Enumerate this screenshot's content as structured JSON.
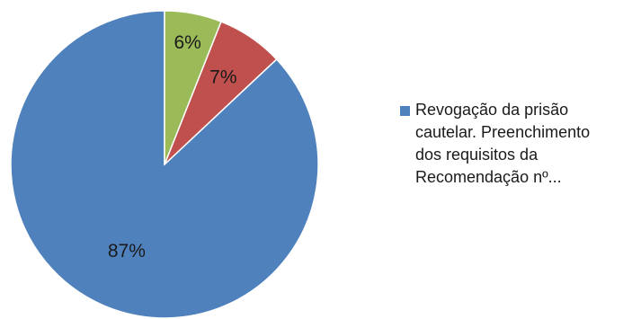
{
  "chart_data": {
    "type": "pie",
    "start_angle_deg": 0,
    "direction": "counterclockwise",
    "slices": [
      {
        "label": "Revogação da prisão\ncautelar. Preenchimento\ndos requisitos da\nRecomendação nº...",
        "value": 87,
        "display": "87%",
        "color": "#4f81bd",
        "in_legend": true
      },
      {
        "label": "",
        "value": 7,
        "display": "7%",
        "color": "#c0504d",
        "in_legend": false
      },
      {
        "label": "",
        "value": 6,
        "display": "6%",
        "color": "#9bbb59",
        "in_legend": false
      }
    ],
    "legend_position": "right"
  }
}
